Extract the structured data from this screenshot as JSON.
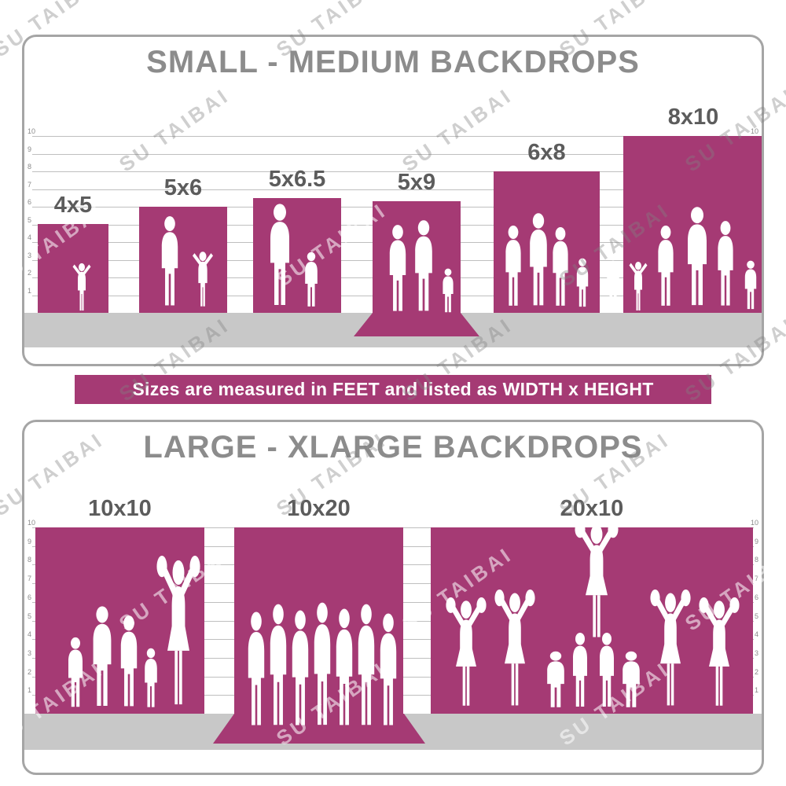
{
  "watermark": {
    "text": "SU TAIBAI"
  },
  "banner": {
    "text": "Sizes are measured in FEET and listed as WIDTH x HEIGHT"
  },
  "ruler_feet": [
    "10",
    "9",
    "8",
    "7",
    "6",
    "5",
    "4",
    "3",
    "2",
    "1"
  ],
  "panels": [
    {
      "title": "SMALL - MEDIUM BACKDROPS",
      "bars": [
        {
          "label": "4x5",
          "width_ft": 4,
          "height_ft": 5
        },
        {
          "label": "5x6",
          "width_ft": 5,
          "height_ft": 6
        },
        {
          "label": "5x6.5",
          "width_ft": 5,
          "height_ft": 6.5
        },
        {
          "label": "5x9",
          "width_ft": 5,
          "height_ft": 9,
          "floor_sweep": true
        },
        {
          "label": "6x8",
          "width_ft": 6,
          "height_ft": 8
        },
        {
          "label": "8x10",
          "width_ft": 8,
          "height_ft": 10
        }
      ]
    },
    {
      "title": "LARGE - XLARGE BACKDROPS",
      "bars": [
        {
          "label": "10x10",
          "width_ft": 10,
          "height_ft": 10
        },
        {
          "label": "10x20",
          "width_ft": 10,
          "height_ft": 20,
          "floor_sweep": true
        },
        {
          "label": "20x10",
          "width_ft": 20,
          "height_ft": 10
        }
      ]
    }
  ],
  "colors": {
    "backdrop": "#a53a74",
    "floor": "#c8c8c8",
    "title": "#8c8c8c",
    "bar_label": "#5c5c5c",
    "banner_text": "#ffffff",
    "silhouette": "#ffffff",
    "watermark_on_light": "rgba(128,128,128,0.38)",
    "watermark_on_dark": "rgba(255,255,255,0.55)"
  }
}
